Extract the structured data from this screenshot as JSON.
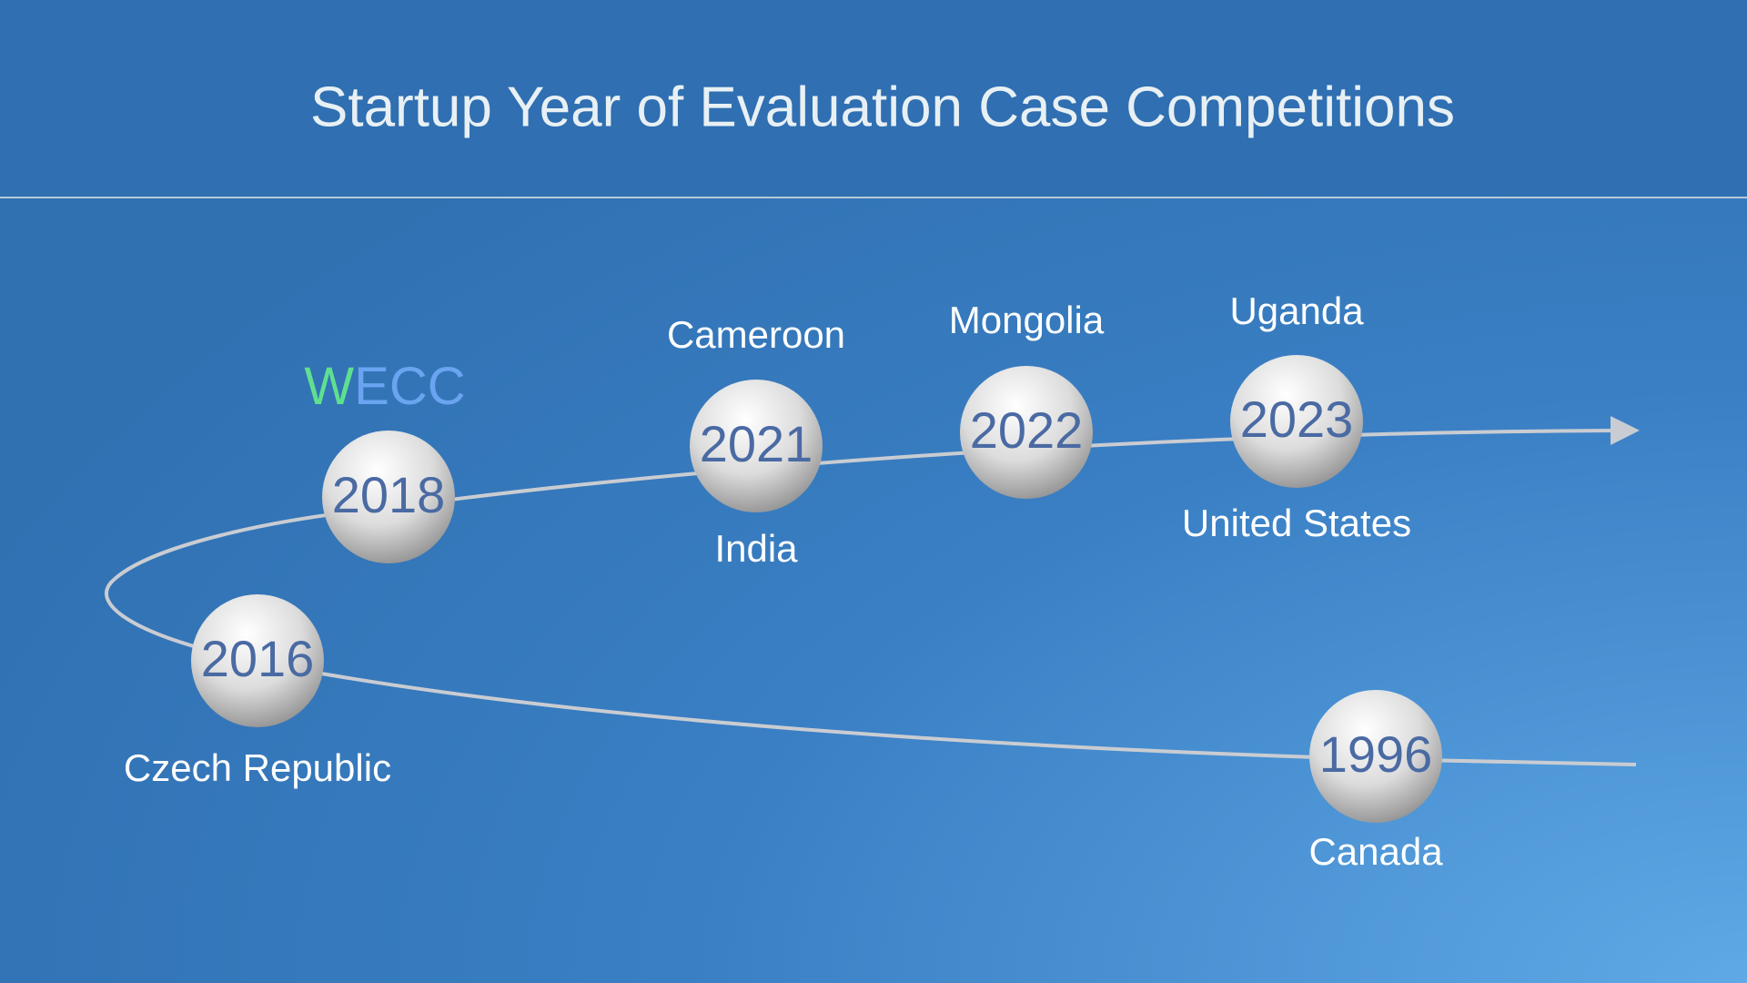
{
  "header": {
    "title": "Startup Year of Evaluation Case Competitions"
  },
  "nodes": [
    {
      "year": "2016",
      "below": "Czech Republic"
    },
    {
      "year": "2018",
      "tag_parts": [
        "W",
        "ECC"
      ]
    },
    {
      "year": "2021",
      "above": "Cameroon",
      "below": "India"
    },
    {
      "year": "2022",
      "above": "Mongolia"
    },
    {
      "year": "2023",
      "above": "Uganda",
      "below": "United States"
    },
    {
      "year": "1996",
      "below": "Canada"
    }
  ]
}
